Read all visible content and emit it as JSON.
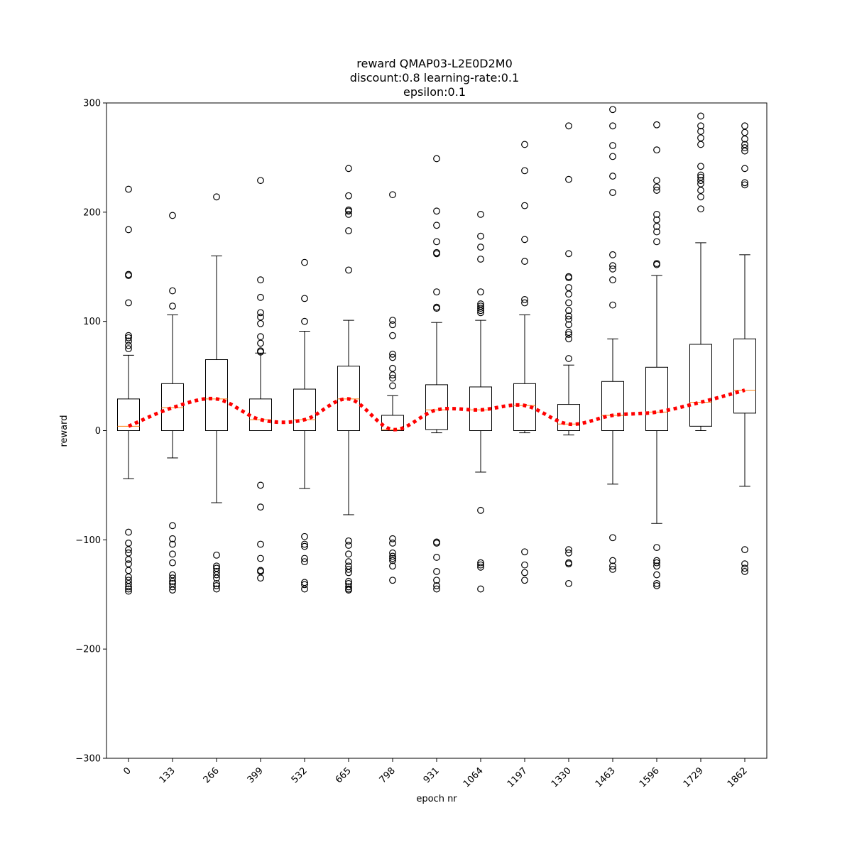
{
  "chart_data": {
    "type": "box",
    "title": [
      "reward QMAP03-L2E0D2M0",
      "discount:0.8 learning-rate:0.1",
      "epsilon:0.1"
    ],
    "xlabel": "epoch nr",
    "ylabel": "reward",
    "ylim": [
      -300,
      300
    ],
    "yticks": [
      -300,
      -200,
      -100,
      0,
      100,
      200,
      300
    ],
    "grid": false,
    "colors": {
      "box": "#000000",
      "median": "#ff7f0e",
      "trend": "#ff0000"
    },
    "boxes": [
      {
        "label": "0",
        "q1": 0,
        "median": 4,
        "q3": 29,
        "whislo": -44,
        "whishi": 69,
        "fliers": [
          221,
          184,
          143,
          142,
          117,
          87,
          85,
          82,
          78,
          75,
          -93,
          -103,
          -109,
          -112,
          -118,
          -122,
          -128,
          -134,
          -137,
          -140,
          -143,
          -145,
          -147
        ]
      },
      {
        "label": "133",
        "q1": 0,
        "median": 21,
        "q3": 43,
        "whislo": -25,
        "whishi": 106,
        "fliers": [
          197,
          128,
          114,
          -87,
          -99,
          -104,
          -113,
          -121,
          -132,
          -135,
          -138,
          -140,
          -143,
          -146
        ]
      },
      {
        "label": "266",
        "q1": 0,
        "median": 29,
        "q3": 65,
        "whislo": -66,
        "whishi": 160,
        "fliers": [
          214,
          -114,
          -124,
          -126,
          -129,
          -132,
          -135,
          -140,
          -142,
          -145
        ]
      },
      {
        "label": "399",
        "q1": 0,
        "median": 10,
        "q3": 29,
        "whislo": 0,
        "whishi": 71,
        "fliers": [
          229,
          138,
          122,
          108,
          104,
          98,
          86,
          80,
          73,
          72,
          -50,
          -70,
          -104,
          -117,
          -128,
          -129,
          -135
        ]
      },
      {
        "label": "532",
        "q1": 0,
        "median": 10,
        "q3": 38,
        "whislo": -53,
        "whishi": 91,
        "fliers": [
          154,
          121,
          100,
          -97,
          -104,
          -106,
          -117,
          -120,
          -139,
          -141,
          -145
        ]
      },
      {
        "label": "665",
        "q1": 0,
        "median": 29,
        "q3": 59,
        "whislo": -77,
        "whishi": 101,
        "fliers": [
          240,
          215,
          202,
          201,
          198,
          183,
          147,
          -101,
          -105,
          -113,
          -120,
          -124,
          -127,
          -130,
          -138,
          -140,
          -143,
          -145,
          -146
        ]
      },
      {
        "label": "798",
        "q1": 0,
        "median": 1,
        "q3": 14,
        "whislo": 0,
        "whishi": 32,
        "fliers": [
          216,
          101,
          97,
          87,
          70,
          67,
          57,
          51,
          48,
          41,
          -99,
          -103,
          -112,
          -115,
          -117,
          -119,
          -124,
          -137
        ]
      },
      {
        "label": "931",
        "q1": 1,
        "median": 19,
        "q3": 42,
        "whislo": -2,
        "whishi": 99,
        "fliers": [
          249,
          201,
          188,
          173,
          163,
          162,
          127,
          113,
          112,
          -102,
          -103,
          -116,
          -129,
          -137,
          -142,
          -145
        ]
      },
      {
        "label": "1064",
        "q1": 0,
        "median": 19,
        "q3": 40,
        "whislo": -38,
        "whishi": 101,
        "fliers": [
          198,
          178,
          168,
          157,
          127,
          116,
          114,
          112,
          110,
          108,
          -73,
          -121,
          -123,
          -125,
          -145
        ]
      },
      {
        "label": "1197",
        "q1": 0,
        "median": 23,
        "q3": 43,
        "whislo": -2,
        "whishi": 106,
        "fliers": [
          262,
          238,
          206,
          175,
          155,
          120,
          117,
          -111,
          -123,
          -130,
          -137
        ]
      },
      {
        "label": "1330",
        "q1": 0,
        "median": 6,
        "q3": 24,
        "whislo": -4,
        "whishi": 60,
        "fliers": [
          279,
          230,
          162,
          141,
          140,
          131,
          125,
          117,
          110,
          105,
          102,
          97,
          90,
          88,
          84,
          66,
          -109,
          -112,
          -121,
          -122,
          -140
        ]
      },
      {
        "label": "1463",
        "q1": 0,
        "median": 14,
        "q3": 45,
        "whislo": -49,
        "whishi": 84,
        "fliers": [
          294,
          279,
          261,
          251,
          233,
          218,
          161,
          151,
          148,
          138,
          115,
          -98,
          -119,
          -124,
          -127
        ]
      },
      {
        "label": "1596",
        "q1": 0,
        "median": 17,
        "q3": 58,
        "whislo": -85,
        "whishi": 142,
        "fliers": [
          280,
          257,
          229,
          223,
          220,
          198,
          193,
          187,
          182,
          173,
          153,
          152,
          -107,
          -119,
          -121,
          -124,
          -132,
          -140,
          -142
        ]
      },
      {
        "label": "1729",
        "q1": 4,
        "median": 26,
        "q3": 79,
        "whislo": 0,
        "whishi": 172,
        "fliers": [
          288,
          279,
          274,
          268,
          262,
          242,
          234,
          232,
          229,
          226,
          220,
          214,
          203
        ]
      },
      {
        "label": "1862",
        "q1": 16,
        "median": 37,
        "q3": 84,
        "whislo": -51,
        "whishi": 161,
        "fliers": [
          279,
          273,
          267,
          262,
          259,
          256,
          240,
          227,
          225,
          -109,
          -122,
          -126,
          -129
        ]
      }
    ],
    "trend": {
      "values": [
        4,
        21,
        29,
        10,
        10,
        29,
        1,
        19,
        19,
        23,
        6,
        14,
        17,
        26,
        37
      ],
      "style": "dotted"
    }
  }
}
